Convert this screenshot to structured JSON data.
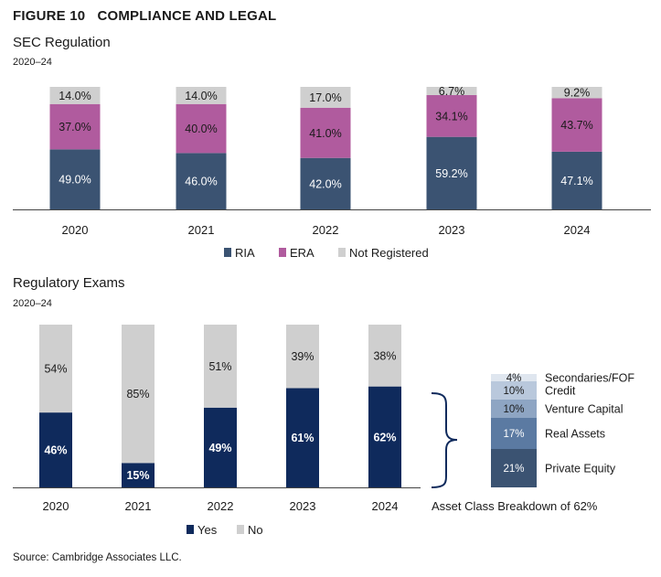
{
  "figure": {
    "number": "FIGURE 10",
    "title": "COMPLIANCE AND LEGAL",
    "source": "Source: Cambridge Associates LLC."
  },
  "colors": {
    "ria": "#3b5372",
    "era": "#b05b9e",
    "not_registered": "#cfcfcf",
    "yes": "#0f2a5c",
    "no": "#cfcfcf",
    "private_equity": "#3b5372",
    "real_assets": "#5b7aa2",
    "venture_capital": "#8ea5c3",
    "credit": "#b9c8dc",
    "secondaries": "#dfe6ef"
  },
  "chart_data": [
    {
      "type": "bar",
      "stacked": true,
      "title": "SEC Regulation",
      "subtitle": "2020–24",
      "categories": [
        "2020",
        "2021",
        "2022",
        "2023",
        "2024"
      ],
      "series": [
        {
          "name": "RIA",
          "values": [
            49.0,
            46.0,
            42.0,
            59.2,
            47.1
          ],
          "labels": [
            "49.0%",
            "46.0%",
            "42.0%",
            "59.2%",
            "47.1%"
          ]
        },
        {
          "name": "ERA",
          "values": [
            37.0,
            40.0,
            41.0,
            34.1,
            43.7
          ],
          "labels": [
            "37.0%",
            "40.0%",
            "41.0%",
            "34.1%",
            "43.7%"
          ]
        },
        {
          "name": "Not Registered",
          "values": [
            14.0,
            14.0,
            17.0,
            6.7,
            9.2
          ],
          "labels": [
            "14.0%",
            "14.0%",
            "17.0%",
            "6.7%",
            "9.2%"
          ]
        }
      ],
      "ylim": [
        0,
        100
      ],
      "legend_position": "bottom"
    },
    {
      "type": "bar",
      "stacked": true,
      "title": "Regulatory Exams",
      "subtitle": "2020–24",
      "categories": [
        "2020",
        "2021",
        "2022",
        "2023",
        "2024"
      ],
      "series": [
        {
          "name": "Yes",
          "values": [
            46,
            15,
            49,
            61,
            62
          ],
          "labels": [
            "46%",
            "15%",
            "49%",
            "61%",
            "62%"
          ]
        },
        {
          "name": "No",
          "values": [
            54,
            85,
            51,
            39,
            38
          ],
          "labels": [
            "54%",
            "85%",
            "51%",
            "39%",
            "38%"
          ]
        }
      ],
      "ylim": [
        0,
        100
      ],
      "legend_position": "bottom"
    },
    {
      "type": "bar",
      "stacked": true,
      "caption": "Asset Class Breakdown of 62%",
      "series": [
        {
          "name": "Private Equity",
          "values": [
            21
          ],
          "labels": [
            "21%"
          ]
        },
        {
          "name": "Real Assets",
          "values": [
            17
          ],
          "labels": [
            "17%"
          ]
        },
        {
          "name": "Venture Capital",
          "values": [
            10
          ],
          "labels": [
            "10%"
          ]
        },
        {
          "name": "Credit",
          "values": [
            10
          ],
          "labels": [
            "10%"
          ]
        },
        {
          "name": "Secondaries/FOF",
          "values": [
            4
          ],
          "labels": [
            "4%"
          ]
        }
      ],
      "ylim": [
        0,
        62
      ]
    }
  ]
}
